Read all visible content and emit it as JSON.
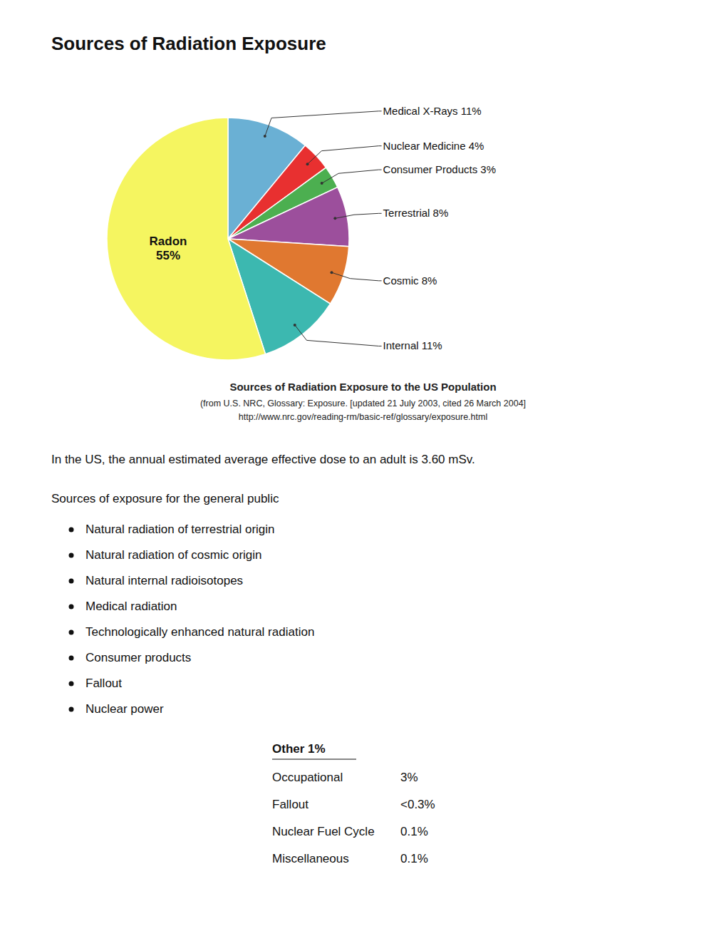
{
  "chart_data": {
    "type": "pie",
    "title": "Sources of Radiation Exposure",
    "values": [
      11,
      4,
      3,
      8,
      8,
      11,
      55
    ],
    "value_labels": [
      "Medical X-Rays 11%",
      "Nuclear Medicine 4%",
      "Consumer Products 3%",
      "Terrestrial 8%",
      "Cosmic 8%",
      "Internal 11%",
      "Radon\n55%"
    ],
    "colors": [
      "#6ab0d4",
      "#e83030",
      "#4caf50",
      "#9c4f9c",
      "#e07830",
      "#3cb8b0",
      "#f5f560"
    ],
    "caption": [
      "Sources of Radiation Exposure to the US Population",
      "(from U.S. NRC, Glossary: Exposure. [updated 21 July 2003, cited 26 March 2004]",
      "http://www.nrc.gov/reading-rm/basic-ref/glossary/exposure.html"
    ],
    "body_text": [
      "In the US, the annual estimated average effective dose to an adult is 3.60 mSv.",
      "Sources of exposure for the general public"
    ],
    "bullet_items": [
      "Natural radiation of terrestrial origin",
      "Natural radiation of cosmic origin",
      "Natural internal radioisotopes",
      "Medical radiation",
      "Technologically enhanced natural radiation",
      "Consumer products",
      "Fallout",
      "Nuclear power"
    ],
    "table_title": "Other 1%",
    "table_rows": [
      [
        "Occupational",
        "3%"
      ],
      [
        "Fallout",
        "<0.3%"
      ],
      [
        "Nuclear Fuel Cycle",
        "0.1%"
      ],
      [
        "Miscellaneous",
        "0.1%"
      ]
    ]
  }
}
